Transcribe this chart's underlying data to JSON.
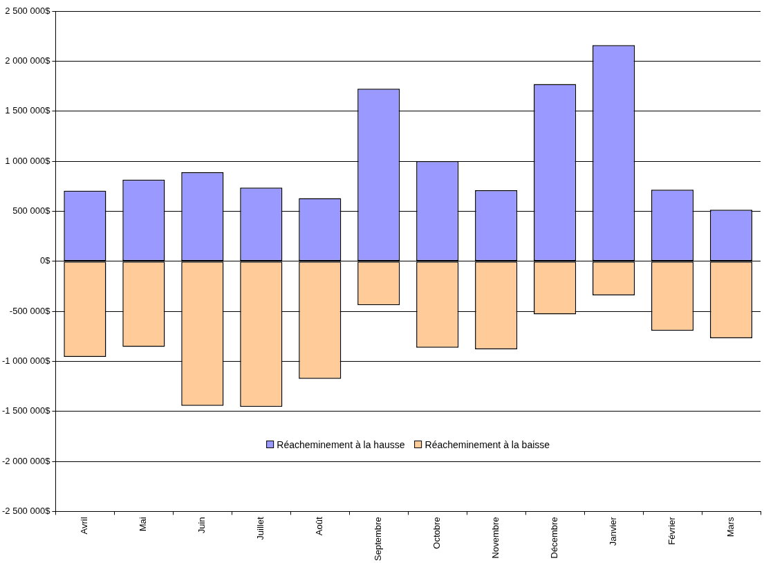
{
  "chart_data": {
    "type": "bar",
    "stacked": true,
    "grid": "y",
    "legend": "bottom",
    "categories": [
      "Avril",
      "Mai",
      "Juin",
      "Juillet",
      "Août",
      "Septembre",
      "Octobre",
      "Novembre",
      "Décembre",
      "Janvier",
      "Février",
      "Mars"
    ],
    "series": [
      {
        "name": "Réacheminement à la hausse",
        "color": "#9999ff",
        "values": [
          705000,
          815000,
          890000,
          735000,
          630000,
          1725000,
          1000000,
          710000,
          1770000,
          2160000,
          715000,
          515000
        ]
      },
      {
        "name": "Réacheminement à la baisse",
        "color": "#ffcc99",
        "values": [
          -955000,
          -855000,
          -1445000,
          -1455000,
          -1175000,
          -440000,
          -865000,
          -880000,
          -530000,
          -340000,
          -695000,
          -770000
        ]
      }
    ],
    "ylim": [
      -2500000,
      2500000
    ],
    "yticks": [
      {
        "value": -2500000,
        "label": "-2 500 000$"
      },
      {
        "value": -2000000,
        "label": "-2 000 000$"
      },
      {
        "value": -1500000,
        "label": "-1 500 000$"
      },
      {
        "value": -1000000,
        "label": "-1 000 000$"
      },
      {
        "value": -500000,
        "label": "-500 000$"
      },
      {
        "value": 0,
        "label": "0$"
      },
      {
        "value": 500000,
        "label": "500 000$"
      },
      {
        "value": 1000000,
        "label": "1 000 000$"
      },
      {
        "value": 1500000,
        "label": "1 500 000$"
      },
      {
        "value": 2000000,
        "label": "2 000 000$"
      },
      {
        "value": 2500000,
        "label": "2 500 000$"
      }
    ]
  }
}
